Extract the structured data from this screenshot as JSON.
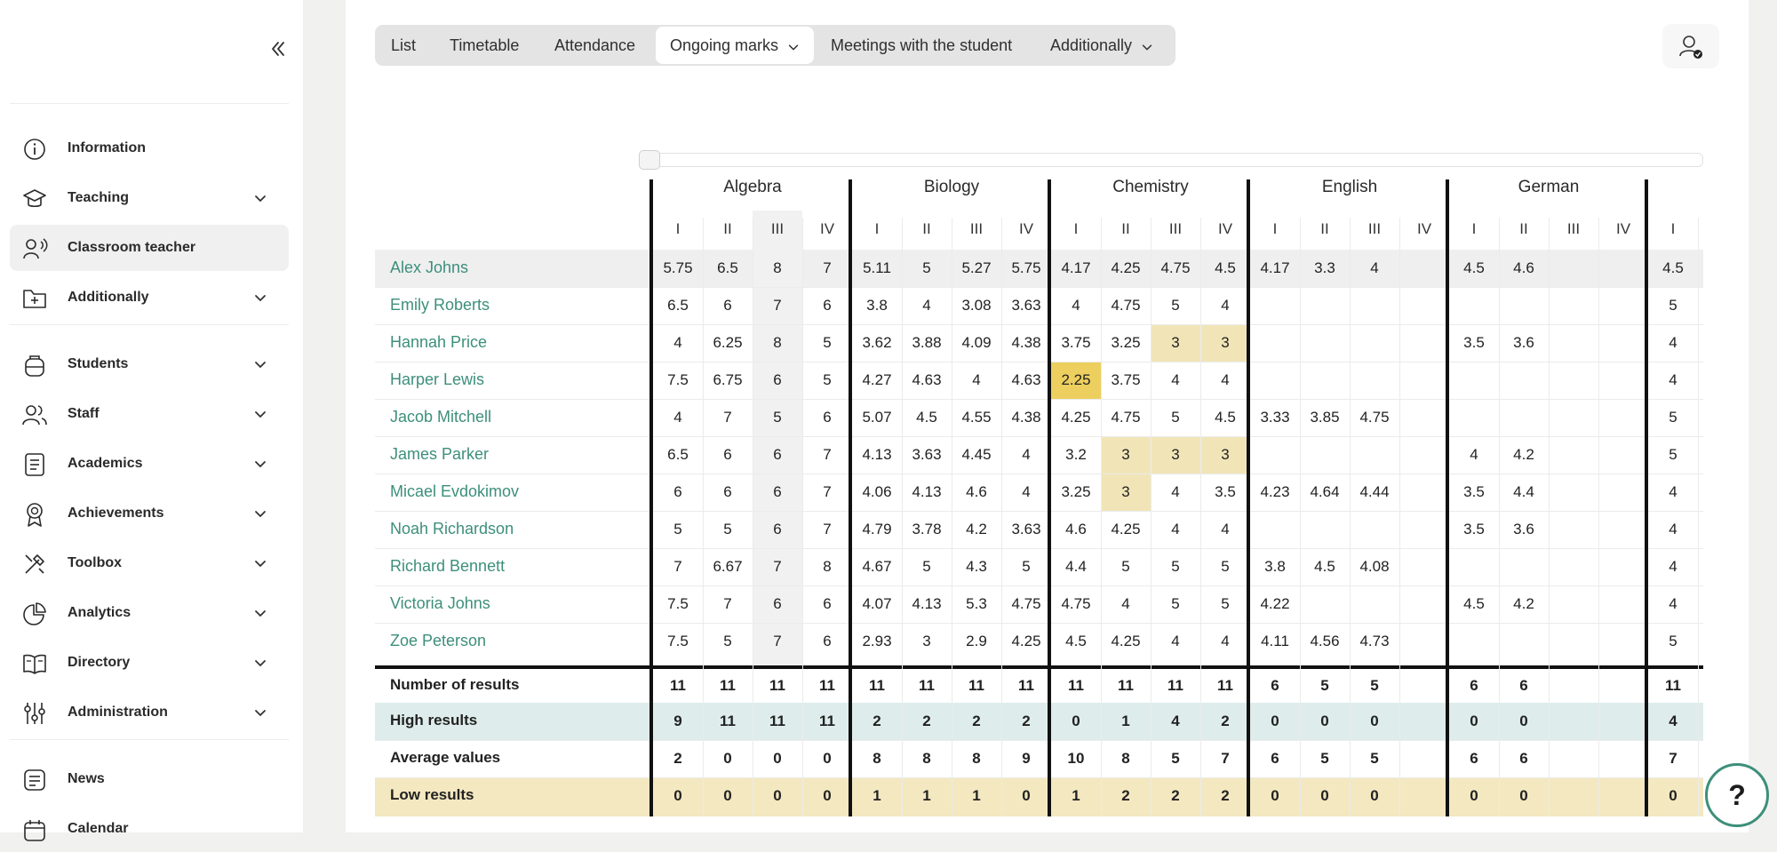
{
  "sidebar": {
    "items": [
      {
        "label": "Information",
        "icon": "info-icon",
        "chevron": false,
        "top": 0
      },
      {
        "label": "Teaching",
        "icon": "graduation-cap-icon",
        "chevron": true
      },
      {
        "label": "Classroom teacher",
        "icon": "teacher-icon",
        "chevron": false,
        "active": true
      },
      {
        "label": "Additionally",
        "icon": "folder-plus-icon",
        "chevron": true
      },
      {
        "label": "Students",
        "icon": "backpack-icon",
        "chevron": true
      },
      {
        "label": "Staff",
        "icon": "users-icon",
        "chevron": true
      },
      {
        "label": "Academics",
        "icon": "book-list-icon",
        "chevron": true
      },
      {
        "label": "Achievements",
        "icon": "award-icon",
        "chevron": true
      },
      {
        "label": "Toolbox",
        "icon": "tools-icon",
        "chevron": true
      },
      {
        "label": "Analytics",
        "icon": "pie-chart-icon",
        "chevron": true
      },
      {
        "label": "Directory",
        "icon": "open-book-icon",
        "chevron": true
      },
      {
        "label": "Administration",
        "icon": "sliders-icon",
        "chevron": true
      },
      {
        "label": "News",
        "icon": "news-icon",
        "chevron": false
      },
      {
        "label": "Calendar",
        "icon": "calendar-icon",
        "chevron": false
      }
    ]
  },
  "tabs": [
    {
      "label": "List"
    },
    {
      "label": "Timetable"
    },
    {
      "label": "Attendance"
    },
    {
      "label": "Ongoing marks",
      "active": true,
      "dropdown": true
    },
    {
      "label": "Meetings with the student"
    },
    {
      "label": "Additionally",
      "dropdown": true
    }
  ],
  "subjects": [
    "Algebra",
    "Biology",
    "Chemistry",
    "English",
    "German"
  ],
  "terms": [
    "I",
    "II",
    "III",
    "IV"
  ],
  "extra_term": "I",
  "students": [
    {
      "name": "Alex Johns",
      "marks": [
        "5.75",
        "6.5",
        "8",
        "7",
        "5.11",
        "5",
        "5.27",
        "5.75",
        "4.17",
        "4.25",
        "4.75",
        "4.5",
        "4.17",
        "3.3",
        "4",
        "",
        "4.5",
        "4.6",
        "",
        "",
        "4.5"
      ]
    },
    {
      "name": "Emily Roberts",
      "marks": [
        "6.5",
        "6",
        "7",
        "6",
        "3.8",
        "4",
        "3.08",
        "3.63",
        "4",
        "4.75",
        "5",
        "4",
        "",
        "",
        "",
        "",
        "",
        "",
        "",
        "",
        "5"
      ]
    },
    {
      "name": "Hannah Price",
      "marks": [
        "4",
        "6.25",
        "8",
        "5",
        "3.62",
        "3.88",
        "4.09",
        "4.38",
        "3.75",
        "3.25",
        "3",
        "3",
        "",
        "",
        "",
        "",
        "3.5",
        "3.6",
        "",
        "",
        "4"
      ]
    },
    {
      "name": "Harper Lewis",
      "marks": [
        "7.5",
        "6.75",
        "6",
        "5",
        "4.27",
        "4.63",
        "4",
        "4.63",
        "2.25",
        "3.75",
        "4",
        "4",
        "",
        "",
        "",
        "",
        "",
        "",
        "",
        "",
        "4"
      ]
    },
    {
      "name": "Jacob Mitchell",
      "marks": [
        "4",
        "7",
        "5",
        "6",
        "5.07",
        "4.5",
        "4.55",
        "4.38",
        "4.25",
        "4.75",
        "5",
        "4.5",
        "3.33",
        "3.85",
        "4.75",
        "",
        "",
        "",
        "",
        "",
        "5"
      ]
    },
    {
      "name": "James Parker",
      "marks": [
        "6.5",
        "6",
        "6",
        "7",
        "4.13",
        "3.63",
        "4.45",
        "4",
        "3.2",
        "3",
        "3",
        "3",
        "",
        "",
        "",
        "",
        "4",
        "4.2",
        "",
        "",
        "5"
      ]
    },
    {
      "name": "Micael Evdokimov",
      "marks": [
        "6",
        "6",
        "6",
        "7",
        "4.06",
        "4.13",
        "4.6",
        "4",
        "3.25",
        "3",
        "4",
        "3.5",
        "4.23",
        "4.64",
        "4.44",
        "",
        "3.5",
        "4.4",
        "",
        "",
        "4"
      ]
    },
    {
      "name": "Noah Richardson",
      "marks": [
        "5",
        "5",
        "6",
        "7",
        "4.79",
        "3.78",
        "4.2",
        "3.63",
        "4.6",
        "4.25",
        "4",
        "4",
        "",
        "",
        "",
        "",
        "3.5",
        "3.6",
        "",
        "",
        "4"
      ]
    },
    {
      "name": "Richard Bennett",
      "marks": [
        "7",
        "6.67",
        "7",
        "8",
        "4.67",
        "5",
        "4.3",
        "5",
        "4.4",
        "5",
        "5",
        "5",
        "3.8",
        "4.5",
        "4.08",
        "",
        "",
        "",
        "",
        "",
        "4"
      ]
    },
    {
      "name": "Victoria Johns",
      "marks": [
        "7.5",
        "7",
        "6",
        "6",
        "4.07",
        "4.13",
        "5.3",
        "4.75",
        "4.75",
        "4",
        "5",
        "5",
        "4.22",
        "",
        "",
        "",
        "4.5",
        "4.2",
        "",
        "",
        "4"
      ]
    },
    {
      "name": "Zoe Peterson",
      "marks": [
        "7.5",
        "5",
        "7",
        "6",
        "2.93",
        "3",
        "2.9",
        "4.25",
        "4.5",
        "4.25",
        "4",
        "4",
        "4.11",
        "4.56",
        "4.73",
        "",
        "",
        "",
        "",
        "",
        "5"
      ]
    }
  ],
  "summary": [
    {
      "label": "Number of results",
      "values": [
        "11",
        "11",
        "11",
        "11",
        "11",
        "11",
        "11",
        "11",
        "11",
        "11",
        "11",
        "11",
        "6",
        "5",
        "5",
        "",
        "6",
        "6",
        "",
        "",
        "11"
      ]
    },
    {
      "label": "High results",
      "values": [
        "9",
        "11",
        "11",
        "11",
        "2",
        "2",
        "2",
        "2",
        "0",
        "1",
        "4",
        "2",
        "0",
        "0",
        "0",
        "",
        "0",
        "0",
        "",
        "",
        "4"
      ]
    },
    {
      "label": "Average values",
      "values": [
        "2",
        "0",
        "0",
        "0",
        "8",
        "8",
        "8",
        "9",
        "10",
        "8",
        "5",
        "7",
        "6",
        "5",
        "5",
        "",
        "6",
        "6",
        "",
        "",
        "7"
      ]
    },
    {
      "label": "Low results",
      "values": [
        "0",
        "0",
        "0",
        "0",
        "1",
        "1",
        "1",
        "0",
        "1",
        "2",
        "2",
        "2",
        "0",
        "0",
        "0",
        "",
        "0",
        "0",
        "",
        "",
        "0"
      ]
    }
  ],
  "highlights": [
    {
      "row": 2,
      "col": 10,
      "level": "low"
    },
    {
      "row": 2,
      "col": 11,
      "level": "low"
    },
    {
      "row": 3,
      "col": 8,
      "level": "critical"
    },
    {
      "row": 5,
      "col": 9,
      "level": "low"
    },
    {
      "row": 5,
      "col": 10,
      "level": "low"
    },
    {
      "row": 5,
      "col": 11,
      "level": "low"
    },
    {
      "row": 6,
      "col": 9,
      "level": "low"
    }
  ],
  "colors": {
    "accent": "#3d8f7a",
    "low_mark": "#f1e5b8",
    "critical_mark": "#eccf5e",
    "high_row": "#deedeb",
    "low_row": "#f3e8c0",
    "selected_row": "#efefef",
    "current_term_col": "#f1f1f1"
  },
  "help": {
    "label": "?"
  }
}
